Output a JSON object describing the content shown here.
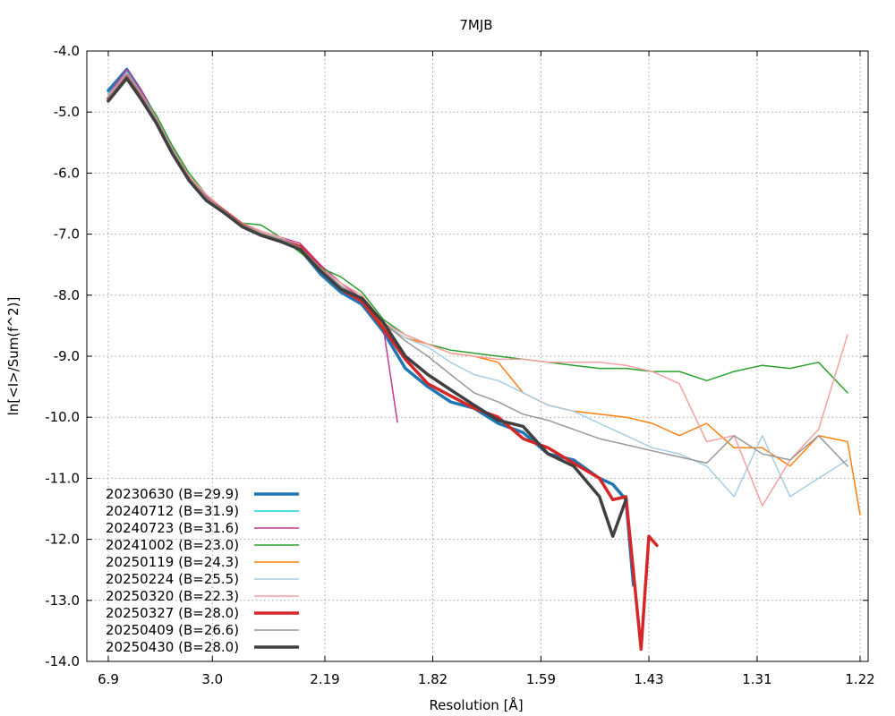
{
  "chart_data": {
    "type": "line",
    "title": "7MJB",
    "xlabel": "Resolution [Å]",
    "ylabel": "ln[<I>/Sum(f^2)]",
    "x_scale": "inverse-square (1/d^2)",
    "xlim": [
      6.9,
      1.22
    ],
    "ylim": [
      -14.0,
      -4.0
    ],
    "x_ticks": [
      "6.9",
      "3.0",
      "2.19",
      "1.82",
      "1.59",
      "1.43",
      "1.31",
      "1.22"
    ],
    "x_tick_values": [
      6.9,
      3.0,
      2.19,
      1.82,
      1.59,
      1.43,
      1.31,
      1.22
    ],
    "y_ticks": [
      "-4.0",
      "-5.0",
      "-6.0",
      "-7.0",
      "-8.0",
      "-9.0",
      "-10.0",
      "-11.0",
      "-12.0",
      "-13.0",
      "-14.0"
    ],
    "y_tick_values": [
      -4.0,
      -5.0,
      -6.0,
      -7.0,
      -8.0,
      -9.0,
      -10.0,
      -11.0,
      -12.0,
      -13.0,
      -14.0
    ],
    "grid": true,
    "legend_position": "bottom-left",
    "series": [
      {
        "name": "20230630 (B=29.9)",
        "color": "#1f77b4",
        "width": 3.5,
        "x": [
          6.9,
          5.199,
          4.511,
          3.999,
          3.617,
          3.317,
          3.074,
          2.872,
          2.702,
          2.554,
          2.426,
          2.312,
          2.211,
          2.121,
          2.039,
          1.964,
          1.896,
          1.833,
          1.775,
          1.721,
          1.67,
          1.622,
          1.578,
          1.536,
          1.497,
          1.478,
          1.46,
          1.45
        ],
        "y": [
          -4.65,
          -4.3,
          -4.65,
          -5.1,
          -5.6,
          -6.08,
          -6.42,
          -6.65,
          -6.85,
          -7.0,
          -7.1,
          -7.25,
          -7.65,
          -7.95,
          -8.15,
          -8.6,
          -9.2,
          -9.5,
          -9.75,
          -9.85,
          -10.1,
          -10.25,
          -10.6,
          -10.7,
          -11.0,
          -11.1,
          -11.35,
          -12.75
        ]
      },
      {
        "name": "20240712 (B=31.9)",
        "color": "#17d4e0",
        "width": 1.5,
        "x": [
          6.9,
          5.199,
          4.511,
          3.999,
          3.617,
          3.317,
          3.074,
          2.872,
          2.702,
          2.554,
          2.426,
          2.312,
          2.211,
          2.121
        ],
        "y": [
          -4.7,
          -4.33,
          -4.68,
          -5.12,
          -5.62,
          -6.05,
          -6.38,
          -6.62,
          -6.85,
          -6.98,
          -7.08,
          -7.2,
          -7.55,
          -7.85
        ]
      },
      {
        "name": "20240723 (B=31.6)",
        "color": "#c2398f",
        "width": 1.5,
        "x": [
          6.9,
          5.199,
          4.511,
          3.999,
          3.617,
          3.317,
          3.074,
          2.872,
          2.702,
          2.554,
          2.426,
          2.312,
          2.211,
          2.121,
          2.039,
          1.964,
          1.92
        ],
        "y": [
          -4.72,
          -4.3,
          -4.62,
          -5.12,
          -5.6,
          -6.05,
          -6.38,
          -6.6,
          -6.82,
          -6.95,
          -7.05,
          -7.15,
          -7.5,
          -7.8,
          -8.05,
          -8.55,
          -10.08
        ]
      },
      {
        "name": "20241002 (B=23.0)",
        "color": "#2ca02c",
        "width": 1.5,
        "x": [
          6.9,
          5.199,
          4.511,
          3.999,
          3.617,
          3.317,
          3.074,
          2.872,
          2.702,
          2.554,
          2.426,
          2.312,
          2.211,
          2.121,
          2.039,
          1.964,
          1.896,
          1.833,
          1.775,
          1.721,
          1.67,
          1.622,
          1.578,
          1.536,
          1.497,
          1.46,
          1.426,
          1.393,
          1.362,
          1.333,
          1.305,
          1.279,
          1.254,
          1.23
        ],
        "y": [
          -4.75,
          -4.4,
          -4.7,
          -5.05,
          -5.55,
          -6.0,
          -6.35,
          -6.6,
          -6.82,
          -6.85,
          -7.05,
          -7.3,
          -7.55,
          -7.7,
          -7.95,
          -8.4,
          -8.65,
          -8.8,
          -8.9,
          -8.95,
          -9.0,
          -9.05,
          -9.1,
          -9.15,
          -9.2,
          -9.2,
          -9.25,
          -9.25,
          -9.4,
          -9.25,
          -9.15,
          -9.2,
          -9.1,
          -9.6
        ]
      },
      {
        "name": "20250119 (B=24.3)",
        "color": "#ff7f0e",
        "width": 1.5,
        "x": [
          6.9,
          5.199,
          4.511,
          3.999,
          3.617,
          3.317,
          3.074,
          2.872,
          2.702,
          2.554,
          2.426,
          2.312,
          2.211,
          2.121,
          2.039,
          1.964,
          1.896,
          1.833,
          1.775,
          1.721,
          1.67,
          1.622,
          1.578,
          1.536,
          1.497,
          1.46,
          1.426,
          1.393,
          1.362,
          1.333,
          1.305,
          1.279,
          1.254,
          1.23,
          1.22
        ],
        "y": [
          -4.75,
          -4.38,
          -4.7,
          -5.1,
          -5.6,
          -6.05,
          -6.35,
          -6.6,
          -6.82,
          -6.98,
          -7.08,
          -7.25,
          -7.6,
          -7.85,
          -8.05,
          -8.5,
          -8.7,
          -8.8,
          -8.95,
          -9.0,
          -9.1,
          -9.6,
          -9.8,
          -9.9,
          -9.95,
          -10.0,
          -10.1,
          -10.3,
          -10.1,
          -10.5,
          -10.5,
          -10.8,
          -10.3,
          -10.4,
          -11.6
        ]
      },
      {
        "name": "20250224 (B=25.5)",
        "color": "#a6cee3",
        "width": 1.5,
        "x": [
          6.9,
          5.199,
          4.511,
          3.999,
          3.617,
          3.317,
          3.074,
          2.872,
          2.702,
          2.554,
          2.426,
          2.312,
          2.211,
          2.121,
          2.039,
          1.964,
          1.896,
          1.833,
          1.775,
          1.721,
          1.67,
          1.622,
          1.578,
          1.536,
          1.497,
          1.46,
          1.426,
          1.393,
          1.362,
          1.333,
          1.305,
          1.279,
          1.254,
          1.23
        ],
        "y": [
          -4.72,
          -4.38,
          -4.68,
          -5.1,
          -5.6,
          -6.05,
          -6.35,
          -6.6,
          -6.82,
          -6.95,
          -7.05,
          -7.2,
          -7.55,
          -7.85,
          -8.05,
          -8.45,
          -8.7,
          -8.85,
          -9.1,
          -9.3,
          -9.4,
          -9.6,
          -9.8,
          -9.9,
          -10.1,
          -10.3,
          -10.5,
          -10.6,
          -10.8,
          -11.3,
          -10.3,
          -11.3,
          -11.0,
          -10.7
        ]
      },
      {
        "name": "20250320 (B=22.3)",
        "color": "#f4a1a1",
        "width": 1.5,
        "x": [
          6.9,
          5.199,
          4.511,
          3.999,
          3.617,
          3.317,
          3.074,
          2.872,
          2.702,
          2.554,
          2.426,
          2.312,
          2.211,
          2.121,
          2.039,
          1.964,
          1.896,
          1.833,
          1.775,
          1.721,
          1.67,
          1.622,
          1.578,
          1.536,
          1.497,
          1.46,
          1.426,
          1.393,
          1.362,
          1.333,
          1.305,
          1.279,
          1.254,
          1.23
        ],
        "y": [
          -4.73,
          -4.36,
          -4.68,
          -5.1,
          -5.6,
          -6.05,
          -6.35,
          -6.6,
          -6.82,
          -6.95,
          -7.05,
          -7.22,
          -7.55,
          -7.8,
          -8.0,
          -8.45,
          -8.65,
          -8.8,
          -8.95,
          -9.0,
          -9.05,
          -9.05,
          -9.1,
          -9.1,
          -9.1,
          -9.15,
          -9.25,
          -9.45,
          -10.4,
          -10.3,
          -11.45,
          -10.7,
          -10.2,
          -8.65
        ]
      },
      {
        "name": "20250327 (B=28.0)",
        "color": "#d62728",
        "width": 3.5,
        "x": [
          6.9,
          5.199,
          4.511,
          3.999,
          3.617,
          3.317,
          3.074,
          2.872,
          2.702,
          2.554,
          2.426,
          2.312,
          2.211,
          2.121,
          2.039,
          1.964,
          1.896,
          1.833,
          1.775,
          1.721,
          1.67,
          1.622,
          1.578,
          1.536,
          1.497,
          1.478,
          1.46,
          1.44,
          1.43,
          1.42
        ],
        "y": [
          -4.78,
          -4.4,
          -4.72,
          -5.15,
          -5.65,
          -6.1,
          -6.42,
          -6.62,
          -6.85,
          -7.0,
          -7.1,
          -7.2,
          -7.55,
          -7.9,
          -8.1,
          -8.55,
          -9.05,
          -9.45,
          -9.65,
          -9.85,
          -10.0,
          -10.35,
          -10.5,
          -10.75,
          -11.0,
          -11.35,
          -11.3,
          -13.8,
          -11.95,
          -12.1
        ]
      },
      {
        "name": "20250409 (B=26.6)",
        "color": "#999999",
        "width": 1.5,
        "x": [
          6.9,
          5.199,
          4.511,
          3.999,
          3.617,
          3.317,
          3.074,
          2.872,
          2.702,
          2.554,
          2.426,
          2.312,
          2.211,
          2.121,
          2.039,
          1.964,
          1.896,
          1.833,
          1.775,
          1.721,
          1.67,
          1.622,
          1.578,
          1.536,
          1.497,
          1.46,
          1.426,
          1.393,
          1.362,
          1.333,
          1.305,
          1.279,
          1.254,
          1.23
        ],
        "y": [
          -4.76,
          -4.38,
          -4.7,
          -5.12,
          -5.62,
          -6.08,
          -6.4,
          -6.62,
          -6.85,
          -6.98,
          -7.08,
          -7.22,
          -7.55,
          -7.85,
          -8.05,
          -8.45,
          -8.75,
          -9.0,
          -9.3,
          -9.6,
          -9.75,
          -9.95,
          -10.05,
          -10.2,
          -10.35,
          -10.45,
          -10.55,
          -10.65,
          -10.75,
          -10.3,
          -10.6,
          -10.7,
          -10.3,
          -10.8
        ]
      },
      {
        "name": "20250430 (B=28.0)",
        "color": "#404040",
        "width": 3.5,
        "x": [
          6.9,
          5.199,
          4.511,
          3.999,
          3.617,
          3.317,
          3.074,
          2.872,
          2.702,
          2.554,
          2.426,
          2.312,
          2.211,
          2.121,
          2.039,
          1.964,
          1.896,
          1.833,
          1.775,
          1.721,
          1.67,
          1.622,
          1.578,
          1.536,
          1.497,
          1.478,
          1.46
        ],
        "y": [
          -4.82,
          -4.45,
          -4.78,
          -5.18,
          -5.68,
          -6.12,
          -6.45,
          -6.65,
          -6.88,
          -7.02,
          -7.12,
          -7.25,
          -7.6,
          -7.9,
          -8.05,
          -8.45,
          -9.0,
          -9.3,
          -9.55,
          -9.8,
          -10.05,
          -10.15,
          -10.6,
          -10.8,
          -11.3,
          -11.95,
          -11.35
        ]
      }
    ]
  }
}
